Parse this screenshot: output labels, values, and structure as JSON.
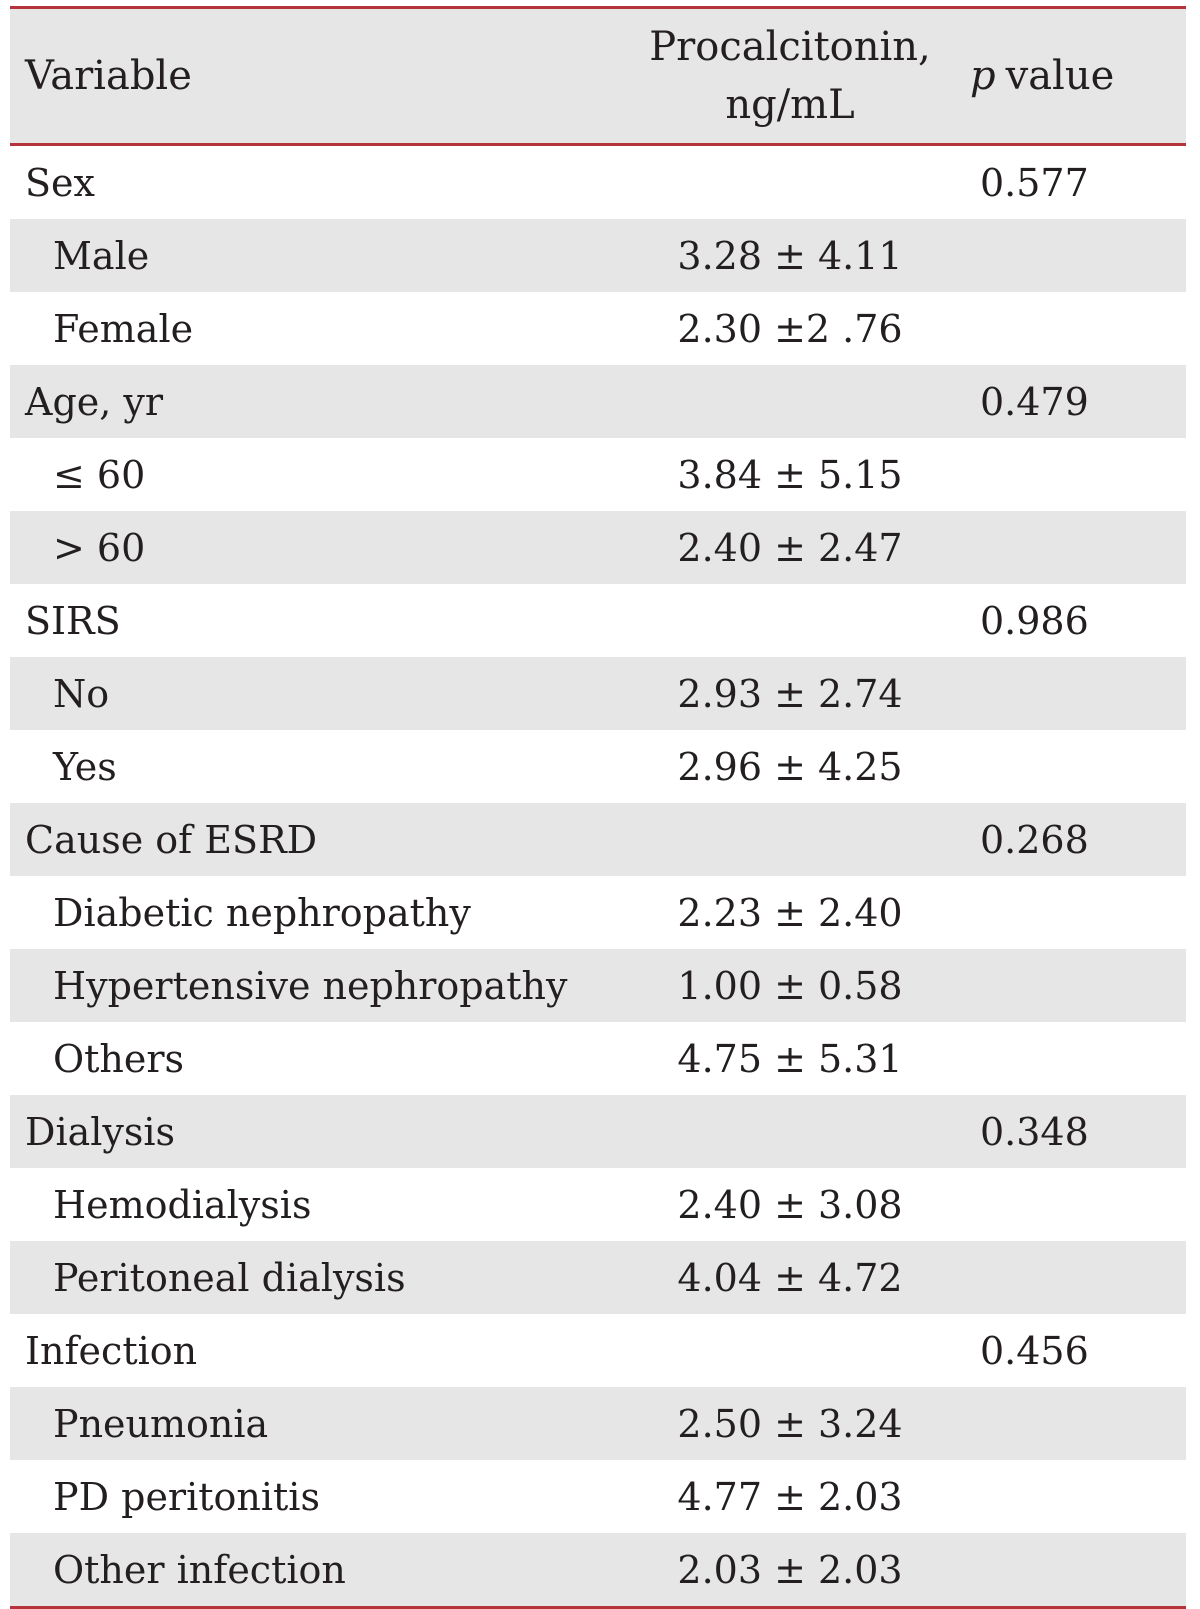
{
  "table": {
    "header": {
      "variable": "Variable",
      "procalcitonin_line1": "Procalcitonin,",
      "procalcitonin_line2": "ng/mL",
      "p_symbol": "p",
      "p_word": "value"
    },
    "rows": [
      {
        "variable": "Sex",
        "value": "",
        "p": "0.577",
        "sub": false
      },
      {
        "variable": "Male",
        "value": "3.28 ± 4.11",
        "p": "",
        "sub": true
      },
      {
        "variable": "Female",
        "value": "2.30 ±2 .76",
        "p": "",
        "sub": true
      },
      {
        "variable": "Age, yr",
        "value": "",
        "p": "0.479",
        "sub": false
      },
      {
        "variable": "≤ 60",
        "value": "3.84 ± 5.15",
        "p": "",
        "sub": true
      },
      {
        "variable": "> 60",
        "value": "2.40 ± 2.47",
        "p": "",
        "sub": true
      },
      {
        "variable": "SIRS",
        "value": "",
        "p": "0.986",
        "sub": false
      },
      {
        "variable": "No",
        "value": "2.93 ± 2.74",
        "p": "",
        "sub": true
      },
      {
        "variable": "Yes",
        "value": "2.96 ± 4.25",
        "p": "",
        "sub": true
      },
      {
        "variable": "Cause of ESRD",
        "value": "",
        "p": "0.268",
        "sub": false
      },
      {
        "variable": "Diabetic nephropathy",
        "value": "2.23 ± 2.40",
        "p": "",
        "sub": true
      },
      {
        "variable": "Hypertensive nephropathy",
        "value": "1.00 ± 0.58",
        "p": "",
        "sub": true
      },
      {
        "variable": "Others",
        "value": "4.75 ± 5.31",
        "p": "",
        "sub": true
      },
      {
        "variable": "Dialysis",
        "value": "",
        "p": "0.348",
        "sub": false
      },
      {
        "variable": "Hemodialysis",
        "value": "2.40 ± 3.08",
        "p": "",
        "sub": true
      },
      {
        "variable": "Peritoneal dialysis",
        "value": "4.04 ± 4.72",
        "p": "",
        "sub": true
      },
      {
        "variable": "Infection",
        "value": "",
        "p": "0.456",
        "sub": false
      },
      {
        "variable": "Pneumonia",
        "value": "2.50 ± 3.24",
        "p": "",
        "sub": true
      },
      {
        "variable": "PD peritonitis",
        "value": "4.77 ± 2.03",
        "p": "",
        "sub": true
      },
      {
        "variable": "Other infection",
        "value": "2.03 ± 2.03",
        "p": "",
        "sub": true
      }
    ]
  },
  "colors": {
    "rule": "#b5343b",
    "shade": "#e6e6e6",
    "text": "#231f20"
  }
}
